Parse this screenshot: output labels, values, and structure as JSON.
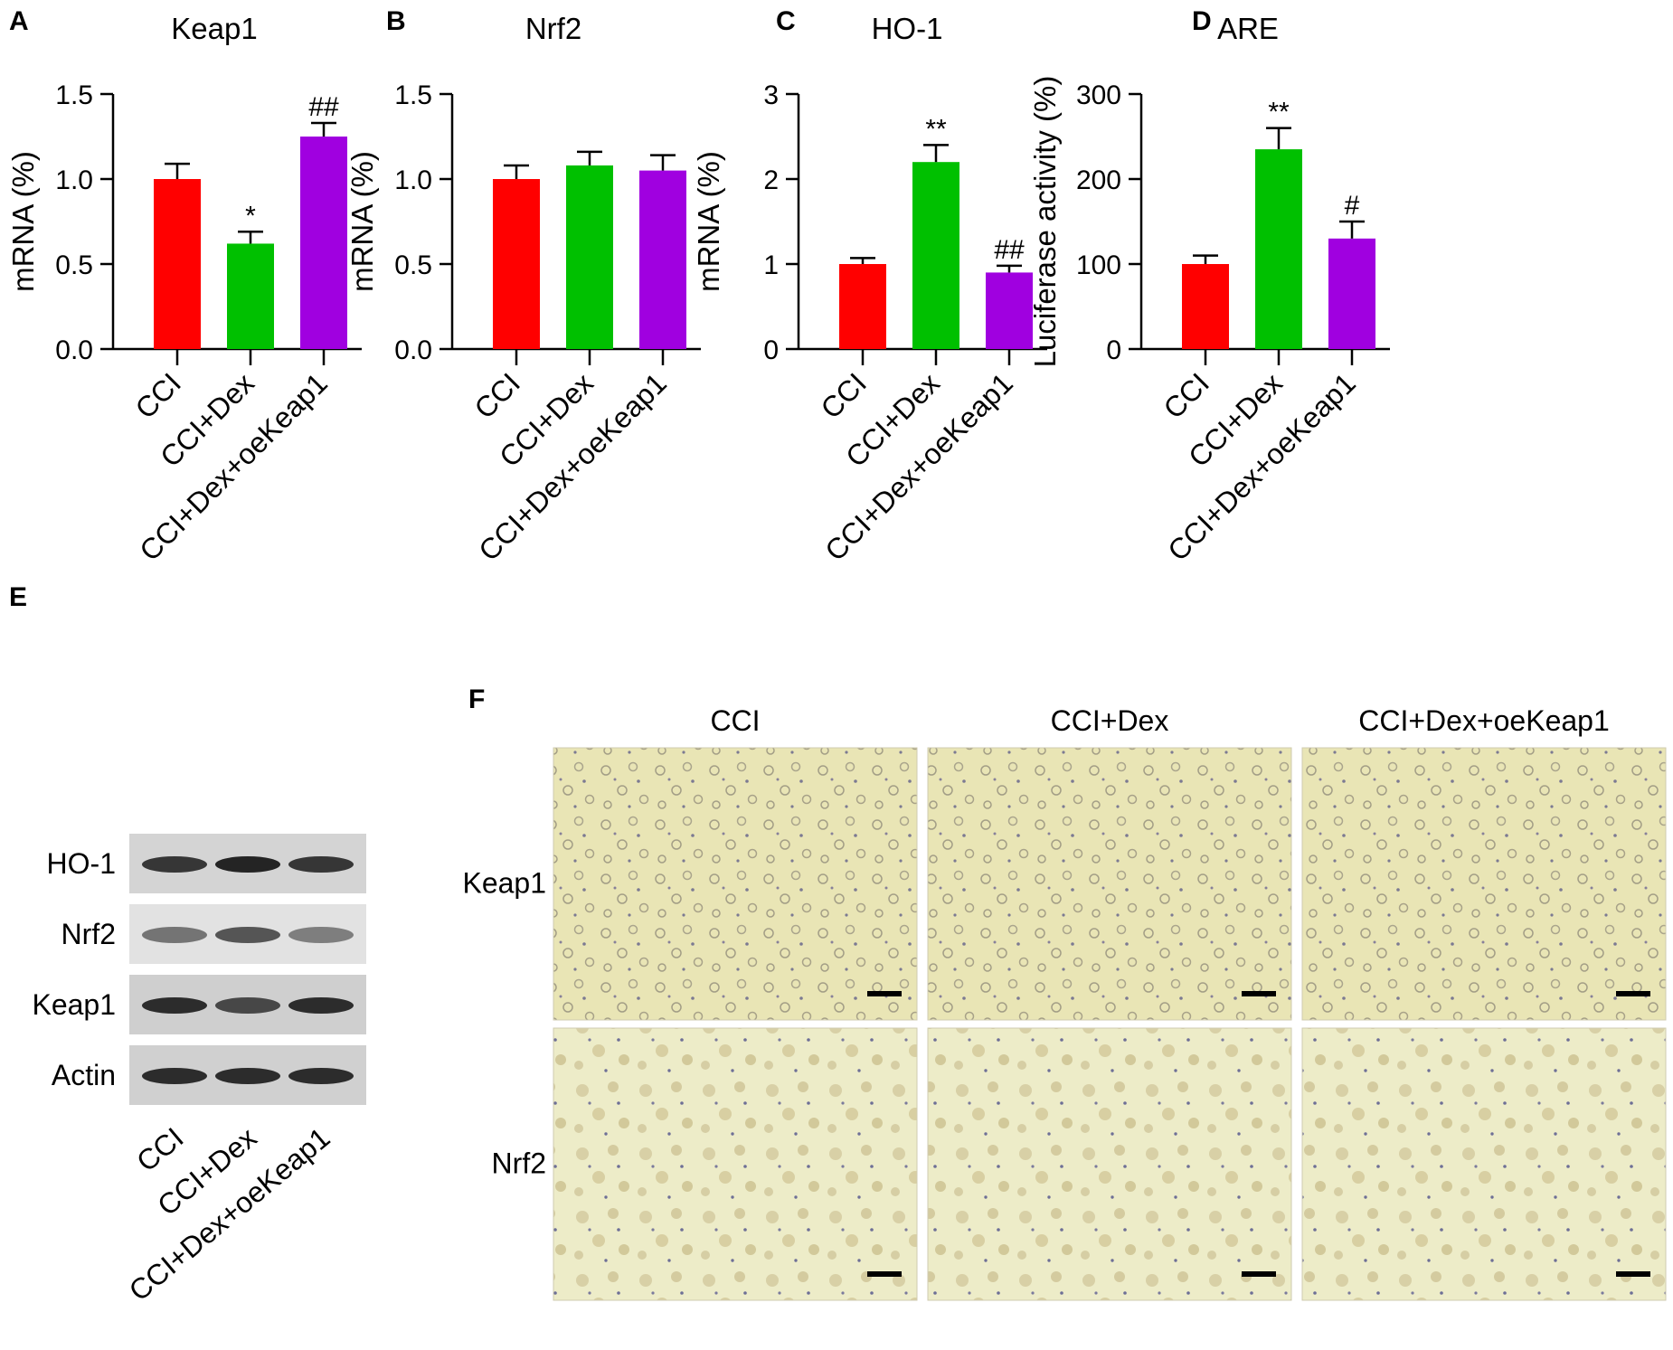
{
  "chart_data": [
    {
      "type": "bar",
      "panel": "A",
      "title": "Keap1",
      "ylabel": "mRNA (%)",
      "categories": [
        "CCI",
        "CCI+Dex",
        "CCI+Dex+oeKeap1"
      ],
      "values": [
        1.0,
        0.62,
        1.25
      ],
      "errors": [
        0.09,
        0.07,
        0.08
      ],
      "significance": [
        "",
        "*",
        "##"
      ],
      "colors": [
        "#ff0000",
        "#00c000",
        "#a000e0"
      ],
      "ylim": [
        0,
        1.5
      ],
      "yticks": [
        "0.0",
        "0.5",
        "1.0",
        "1.5"
      ]
    },
    {
      "type": "bar",
      "panel": "B",
      "title": "Nrf2",
      "ylabel": "mRNA (%)",
      "categories": [
        "CCI",
        "CCI+Dex",
        "CCI+Dex+oeKeap1"
      ],
      "values": [
        1.0,
        1.08,
        1.05
      ],
      "errors": [
        0.08,
        0.08,
        0.09
      ],
      "significance": [
        "",
        "",
        ""
      ],
      "colors": [
        "#ff0000",
        "#00c000",
        "#a000e0"
      ],
      "ylim": [
        0,
        1.5
      ],
      "yticks": [
        "0.0",
        "0.5",
        "1.0",
        "1.5"
      ]
    },
    {
      "type": "bar",
      "panel": "C",
      "title": "HO-1",
      "ylabel": "mRNA (%)",
      "categories": [
        "CCI",
        "CCI+Dex",
        "CCI+Dex+oeKeap1"
      ],
      "values": [
        1.0,
        2.2,
        0.9
      ],
      "errors": [
        0.07,
        0.2,
        0.08
      ],
      "significance": [
        "",
        "**",
        "##"
      ],
      "colors": [
        "#ff0000",
        "#00c000",
        "#a000e0"
      ],
      "ylim": [
        0,
        3
      ],
      "yticks": [
        "0",
        "1",
        "2",
        "3"
      ]
    },
    {
      "type": "bar",
      "panel": "D",
      "title": "ARE",
      "ylabel": "Luciferase activity (%)",
      "categories": [
        "CCI",
        "CCI+Dex",
        "CCI+Dex+oeKeap1"
      ],
      "values": [
        100,
        235,
        130
      ],
      "errors": [
        10,
        25,
        20
      ],
      "significance": [
        "",
        "**",
        "#"
      ],
      "colors": [
        "#ff0000",
        "#00c000",
        "#a000e0"
      ],
      "ylim": [
        0,
        300
      ],
      "yticks": [
        "0",
        "100",
        "200",
        "300"
      ]
    }
  ],
  "panel_e": {
    "label": "E",
    "rows": [
      "HO-1",
      "Nrf2",
      "Keap1",
      "Actin"
    ],
    "lanes": [
      "CCI",
      "CCI+Dex",
      "CCI+Dex+oeKeap1"
    ]
  },
  "panel_f": {
    "label": "F",
    "columns": [
      "CCI",
      "CCI+Dex",
      "CCI+Dex+oeKeap1"
    ],
    "rows": [
      "Keap1",
      "Nrf2"
    ]
  }
}
